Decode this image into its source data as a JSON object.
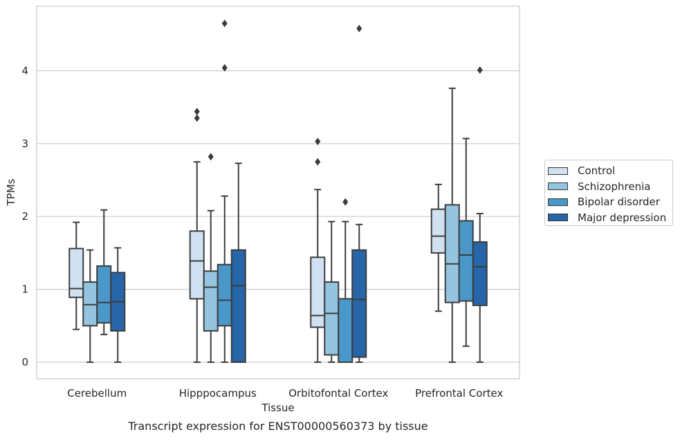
{
  "chart_data": {
    "type": "boxplot",
    "title": "",
    "caption": "Transcript expression for ENST00000560373 by tissue",
    "xlabel": "Tissue",
    "ylabel": "TPMs",
    "ylim": [
      -0.22,
      4.9
    ],
    "yticks": [
      0,
      1,
      2,
      3,
      4
    ],
    "grid": "horizontal",
    "legend_position": "right",
    "categories": [
      "Cerebellum",
      "Hipppocampus",
      "Orbitofontal Cortex",
      "Prefrontal Cortex"
    ],
    "series": [
      {
        "name": "Control",
        "color": "#d0e1f2",
        "boxes": [
          {
            "whislo": 0.45,
            "q1": 0.89,
            "med": 1.01,
            "q3": 1.56,
            "whishi": 1.92,
            "fliers": []
          },
          {
            "whislo": 0.0,
            "q1": 0.87,
            "med": 1.39,
            "q3": 1.8,
            "whishi": 2.75,
            "fliers": [
              3.35,
              3.44
            ]
          },
          {
            "whislo": 0.0,
            "q1": 0.48,
            "med": 0.64,
            "q3": 1.44,
            "whishi": 2.37,
            "fliers": [
              2.75,
              3.03
            ]
          },
          {
            "whislo": 0.7,
            "q1": 1.5,
            "med": 1.73,
            "q3": 2.1,
            "whishi": 2.44,
            "fliers": []
          }
        ]
      },
      {
        "name": "Schizophrenia",
        "color": "#94c4df",
        "boxes": [
          {
            "whislo": 0.0,
            "q1": 0.5,
            "med": 0.79,
            "q3": 1.1,
            "whishi": 1.54,
            "fliers": []
          },
          {
            "whislo": 0.0,
            "q1": 0.43,
            "med": 1.03,
            "q3": 1.25,
            "whishi": 2.08,
            "fliers": [
              2.82
            ]
          },
          {
            "whislo": 0.0,
            "q1": 0.1,
            "med": 0.67,
            "q3": 1.1,
            "whishi": 1.93,
            "fliers": []
          },
          {
            "whislo": 0.0,
            "q1": 0.82,
            "med": 1.35,
            "q3": 2.16,
            "whishi": 3.76,
            "fliers": []
          }
        ]
      },
      {
        "name": "Bipolar disorder",
        "color": "#4a98c9",
        "boxes": [
          {
            "whislo": 0.38,
            "q1": 0.54,
            "med": 0.82,
            "q3": 1.32,
            "whishi": 2.09,
            "fliers": []
          },
          {
            "whislo": 0.0,
            "q1": 0.5,
            "med": 0.85,
            "q3": 1.34,
            "whishi": 2.28,
            "fliers": [
              4.04,
              4.65
            ]
          },
          {
            "whislo": 0.0,
            "q1": 0.0,
            "med": 0.0,
            "q3": 0.87,
            "whishi": 1.93,
            "fliers": [
              2.2
            ]
          },
          {
            "whislo": 0.22,
            "q1": 0.84,
            "med": 1.47,
            "q3": 1.94,
            "whishi": 3.07,
            "fliers": []
          }
        ]
      },
      {
        "name": "Major depression",
        "color": "#2565a8",
        "boxes": [
          {
            "whislo": 0.0,
            "q1": 0.43,
            "med": 0.83,
            "q3": 1.23,
            "whishi": 1.57,
            "fliers": []
          },
          {
            "whislo": 0.0,
            "q1": 0.0,
            "med": 1.05,
            "q3": 1.54,
            "whishi": 2.73,
            "fliers": []
          },
          {
            "whislo": 0.0,
            "q1": 0.07,
            "med": 0.86,
            "q3": 1.54,
            "whishi": 1.89,
            "fliers": [
              4.58
            ]
          },
          {
            "whislo": 0.0,
            "q1": 0.78,
            "med": 1.31,
            "q3": 1.65,
            "whishi": 2.04,
            "fliers": [
              4.01
            ]
          }
        ]
      }
    ]
  }
}
